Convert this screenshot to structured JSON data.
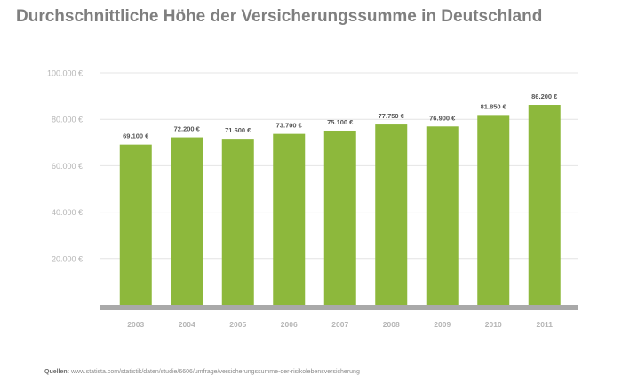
{
  "title": "Durchschnittliche Höhe der Versicherungssumme in Deutschland",
  "source": {
    "label": "Quellen:",
    "text": "www.statista.com/statistik/daten/studie/6606/umfrage/versicherungssumme-der-risikolebensversicherung"
  },
  "colors": {
    "bar": "#8db83c",
    "grid": "#e4e4e4",
    "baseline": "#a9a9a9",
    "tick_label": "#b5b5b5",
    "value_label": "#555555",
    "title": "#7f7f7f"
  },
  "chart_data": {
    "type": "bar",
    "title": "Durchschnittliche Höhe der Versicherungssumme in Deutschland",
    "xlabel": "",
    "ylabel": "",
    "categories": [
      "2003",
      "2004",
      "2005",
      "2006",
      "2007",
      "2008",
      "2009",
      "2010",
      "2011"
    ],
    "values": [
      69100,
      72200,
      71600,
      73700,
      75100,
      77750,
      76900,
      81850,
      86200
    ],
    "value_labels": [
      "69.100 €",
      "72.200 €",
      "71.600 €",
      "73.700 €",
      "75.100 €",
      "77.750 €",
      "76.900 €",
      "81.850 €",
      "86.200 €"
    ],
    "ylim": [
      0,
      100000
    ],
    "yticks": [
      20000,
      40000,
      60000,
      80000,
      100000
    ],
    "ytick_labels": [
      "20.000 €",
      "40.000 €",
      "60.000 €",
      "80.000 €",
      "100.000 €"
    ],
    "grid": true,
    "legend": "none"
  }
}
